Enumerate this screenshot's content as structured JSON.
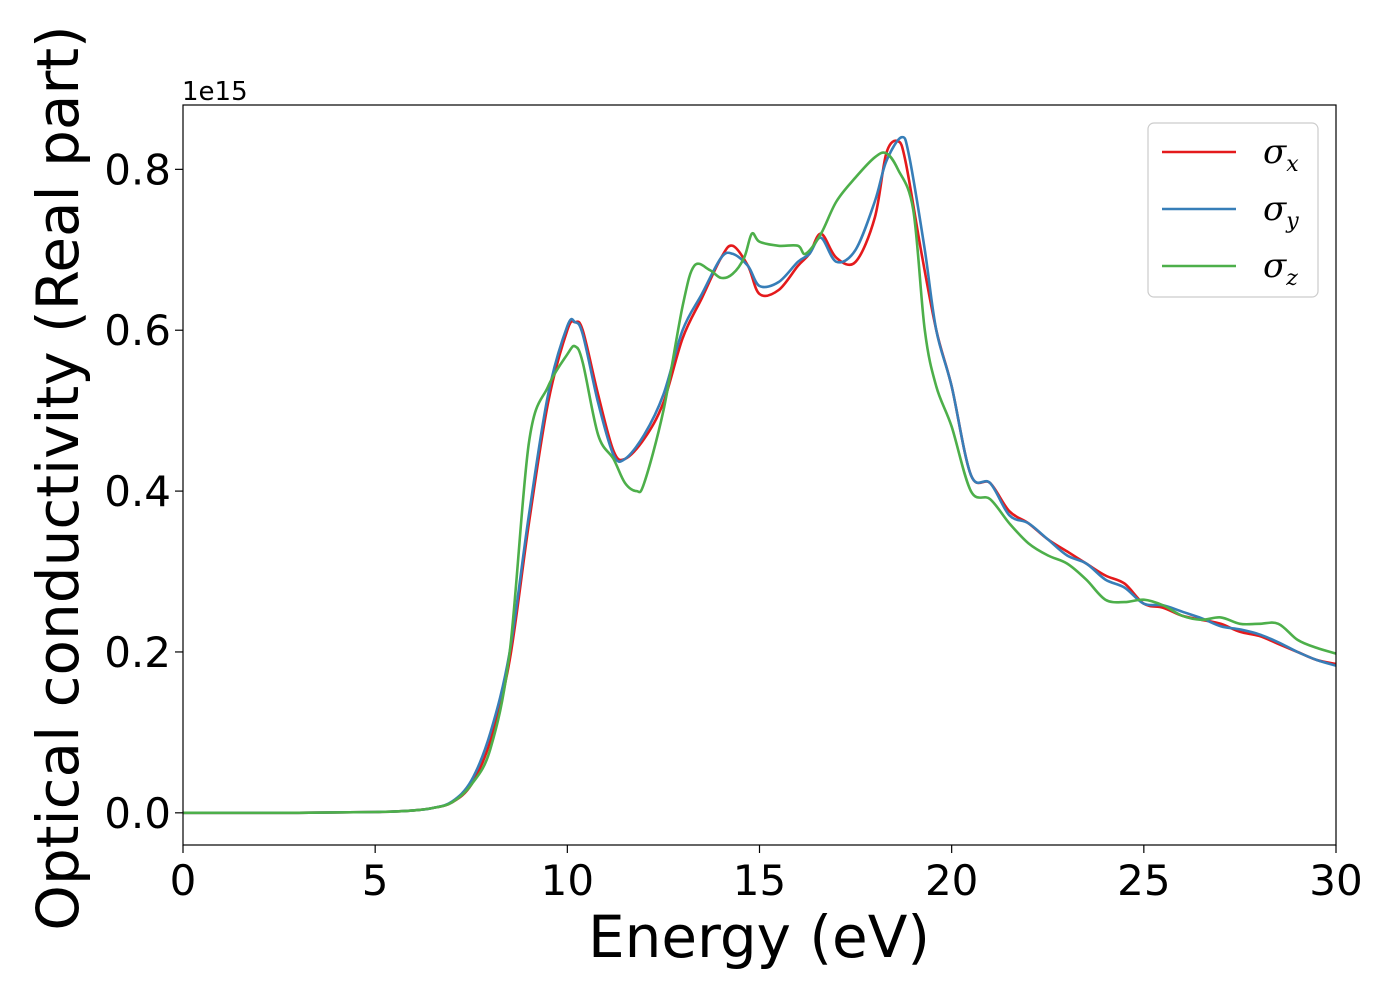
{
  "chart_data": {
    "type": "line",
    "xlabel": "Energy (eV)",
    "ylabel": "Optical conductivity (Real part)",
    "y_offset_label": "1e15",
    "xlim": [
      0,
      30
    ],
    "ylim": [
      -0.04,
      0.88
    ],
    "x_ticks": [
      0,
      5,
      10,
      15,
      20,
      25,
      30
    ],
    "x_tick_labels": [
      "0",
      "5",
      "10",
      "15",
      "20",
      "25",
      "30"
    ],
    "y_ticks": [
      0.0,
      0.2,
      0.4,
      0.6,
      0.8
    ],
    "y_tick_labels": [
      "0.0",
      "0.2",
      "0.4",
      "0.6",
      "0.8"
    ],
    "grid": false,
    "legend_position": "top-right",
    "series": [
      {
        "name": "σx",
        "symbol": "σ",
        "subscript": "x",
        "color": "#e41a1c",
        "points": [
          [
            0,
            0.0
          ],
          [
            3,
            0.0
          ],
          [
            5,
            0.001
          ],
          [
            6,
            0.003
          ],
          [
            6.5,
            0.006
          ],
          [
            7,
            0.013
          ],
          [
            7.5,
            0.035
          ],
          [
            8,
            0.09
          ],
          [
            8.5,
            0.19
          ],
          [
            9,
            0.36
          ],
          [
            9.5,
            0.51
          ],
          [
            10,
            0.6
          ],
          [
            10.2,
            0.61
          ],
          [
            10.4,
            0.6
          ],
          [
            10.8,
            0.52
          ],
          [
            11.2,
            0.45
          ],
          [
            11.5,
            0.44
          ],
          [
            12,
            0.465
          ],
          [
            12.5,
            0.51
          ],
          [
            13,
            0.59
          ],
          [
            13.5,
            0.64
          ],
          [
            14,
            0.69
          ],
          [
            14.3,
            0.705
          ],
          [
            14.7,
            0.68
          ],
          [
            15,
            0.645
          ],
          [
            15.5,
            0.65
          ],
          [
            16,
            0.68
          ],
          [
            16.3,
            0.695
          ],
          [
            16.6,
            0.72
          ],
          [
            17,
            0.69
          ],
          [
            17.5,
            0.685
          ],
          [
            18,
            0.74
          ],
          [
            18.3,
            0.82
          ],
          [
            18.6,
            0.835
          ],
          [
            18.8,
            0.81
          ],
          [
            19.2,
            0.7
          ],
          [
            19.6,
            0.6
          ],
          [
            20,
            0.53
          ],
          [
            20.5,
            0.42
          ],
          [
            21,
            0.41
          ],
          [
            21.5,
            0.375
          ],
          [
            22,
            0.36
          ],
          [
            22.5,
            0.34
          ],
          [
            23,
            0.325
          ],
          [
            23.5,
            0.31
          ],
          [
            24,
            0.295
          ],
          [
            24.5,
            0.285
          ],
          [
            25,
            0.26
          ],
          [
            25.5,
            0.255
          ],
          [
            26,
            0.245
          ],
          [
            26.5,
            0.24
          ],
          [
            27,
            0.235
          ],
          [
            27.5,
            0.225
          ],
          [
            28,
            0.22
          ],
          [
            28.5,
            0.21
          ],
          [
            29,
            0.2
          ],
          [
            29.5,
            0.19
          ],
          [
            30,
            0.185
          ]
        ]
      },
      {
        "name": "σy",
        "symbol": "σ",
        "subscript": "y",
        "color": "#377eb8",
        "points": [
          [
            0,
            0.0
          ],
          [
            3,
            0.0
          ],
          [
            5,
            0.001
          ],
          [
            6,
            0.003
          ],
          [
            6.5,
            0.006
          ],
          [
            7,
            0.014
          ],
          [
            7.5,
            0.04
          ],
          [
            8,
            0.1
          ],
          [
            8.5,
            0.2
          ],
          [
            9,
            0.37
          ],
          [
            9.5,
            0.52
          ],
          [
            10,
            0.605
          ],
          [
            10.2,
            0.61
          ],
          [
            10.4,
            0.595
          ],
          [
            10.8,
            0.51
          ],
          [
            11.2,
            0.445
          ],
          [
            11.5,
            0.44
          ],
          [
            12,
            0.47
          ],
          [
            12.5,
            0.52
          ],
          [
            13,
            0.6
          ],
          [
            13.5,
            0.645
          ],
          [
            14,
            0.69
          ],
          [
            14.3,
            0.695
          ],
          [
            14.7,
            0.68
          ],
          [
            15,
            0.655
          ],
          [
            15.5,
            0.66
          ],
          [
            16,
            0.685
          ],
          [
            16.3,
            0.695
          ],
          [
            16.6,
            0.715
          ],
          [
            17,
            0.685
          ],
          [
            17.5,
            0.7
          ],
          [
            18,
            0.76
          ],
          [
            18.3,
            0.81
          ],
          [
            18.7,
            0.84
          ],
          [
            18.9,
            0.815
          ],
          [
            19.3,
            0.7
          ],
          [
            19.6,
            0.6
          ],
          [
            20,
            0.53
          ],
          [
            20.5,
            0.42
          ],
          [
            21,
            0.41
          ],
          [
            21.5,
            0.37
          ],
          [
            22,
            0.36
          ],
          [
            22.5,
            0.34
          ],
          [
            23,
            0.32
          ],
          [
            23.5,
            0.31
          ],
          [
            24,
            0.29
          ],
          [
            24.5,
            0.28
          ],
          [
            25,
            0.26
          ],
          [
            25.5,
            0.258
          ],
          [
            26,
            0.25
          ],
          [
            26.5,
            0.242
          ],
          [
            27,
            0.232
          ],
          [
            27.5,
            0.228
          ],
          [
            28,
            0.222
          ],
          [
            28.5,
            0.212
          ],
          [
            29,
            0.2
          ],
          [
            29.5,
            0.19
          ],
          [
            30,
            0.183
          ]
        ]
      },
      {
        "name": "σz",
        "symbol": "σ",
        "subscript": "z",
        "color": "#4daf4a",
        "points": [
          [
            0,
            0.0
          ],
          [
            3,
            0.0
          ],
          [
            5,
            0.001
          ],
          [
            6,
            0.003
          ],
          [
            6.5,
            0.006
          ],
          [
            7,
            0.013
          ],
          [
            7.5,
            0.035
          ],
          [
            8,
            0.08
          ],
          [
            8.5,
            0.2
          ],
          [
            9,
            0.46
          ],
          [
            9.5,
            0.53
          ],
          [
            10,
            0.57
          ],
          [
            10.2,
            0.58
          ],
          [
            10.4,
            0.56
          ],
          [
            10.8,
            0.47
          ],
          [
            11.2,
            0.44
          ],
          [
            11.5,
            0.41
          ],
          [
            11.8,
            0.4
          ],
          [
            12,
            0.41
          ],
          [
            12.5,
            0.5
          ],
          [
            13,
            0.63
          ],
          [
            13.3,
            0.68
          ],
          [
            13.7,
            0.675
          ],
          [
            14,
            0.665
          ],
          [
            14.3,
            0.67
          ],
          [
            14.6,
            0.69
          ],
          [
            14.8,
            0.72
          ],
          [
            15,
            0.71
          ],
          [
            15.5,
            0.705
          ],
          [
            16,
            0.705
          ],
          [
            16.2,
            0.695
          ],
          [
            16.6,
            0.72
          ],
          [
            17,
            0.76
          ],
          [
            17.5,
            0.79
          ],
          [
            18,
            0.815
          ],
          [
            18.3,
            0.82
          ],
          [
            18.6,
            0.8
          ],
          [
            19,
            0.75
          ],
          [
            19.3,
            0.6
          ],
          [
            19.6,
            0.53
          ],
          [
            20,
            0.48
          ],
          [
            20.5,
            0.4
          ],
          [
            21,
            0.39
          ],
          [
            21.5,
            0.36
          ],
          [
            22,
            0.335
          ],
          [
            22.5,
            0.32
          ],
          [
            23,
            0.31
          ],
          [
            23.5,
            0.29
          ],
          [
            24,
            0.265
          ],
          [
            24.5,
            0.262
          ],
          [
            25,
            0.265
          ],
          [
            25.5,
            0.258
          ],
          [
            26,
            0.245
          ],
          [
            26.5,
            0.24
          ],
          [
            27,
            0.243
          ],
          [
            27.5,
            0.235
          ],
          [
            28,
            0.235
          ],
          [
            28.5,
            0.235
          ],
          [
            29,
            0.215
          ],
          [
            29.5,
            0.205
          ],
          [
            30,
            0.198
          ]
        ]
      }
    ]
  }
}
